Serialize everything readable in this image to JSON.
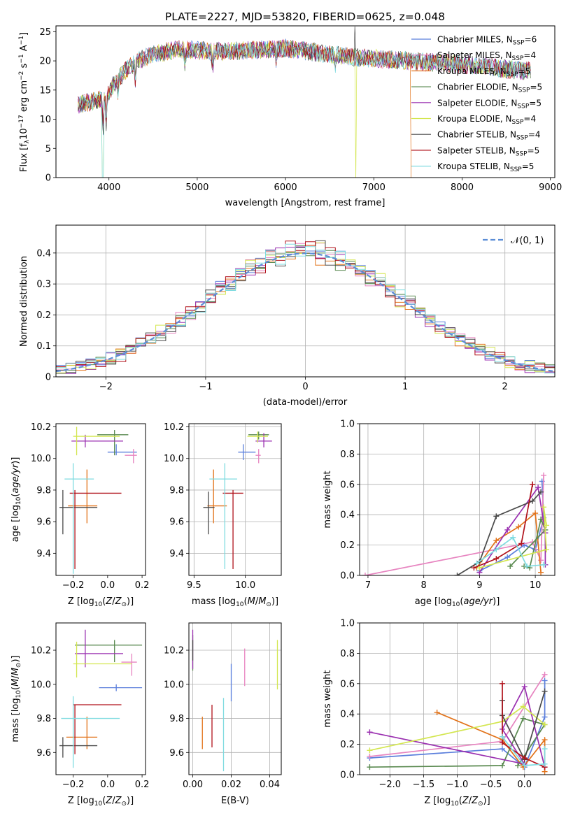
{
  "figure": {
    "title": "PLATE=2227, MJD=53820, FIBERID=0625, z=0.048"
  },
  "colors": {
    "chabrier_miles": "#5b7fdc",
    "salpeter_miles": "#e784c0",
    "kroupa_miles": "#e2731a",
    "chabrier_elodie": "#5a8a50",
    "salpeter_elodie": "#9a2fb0",
    "kroupa_elodie": "#d3e64f",
    "chabrier_stelib": "#4a4a4a",
    "salpeter_stelib": "#b0121b",
    "kroupa_stelib": "#7fdbe0",
    "normal_curve": "#5b8dd6",
    "grid": "#b0b0b0"
  },
  "chart_data": [
    {
      "id": "spectrum",
      "type": "line",
      "xlabel": "wavelength [Angstrom, rest frame]",
      "ylabel": "Flux [f_λ10^-17 erg cm^-2 s^-1 A^-1]",
      "xlim": [
        3400,
        9050
      ],
      "ylim": [
        0,
        26
      ],
      "xticks": [
        4000,
        5000,
        6000,
        7000,
        8000,
        9000
      ],
      "yticks": [
        0,
        5,
        10,
        15,
        20,
        25
      ],
      "grid": false,
      "legend_position": "top-right",
      "spectrum_trend": {
        "x": [
          3650,
          3800,
          3950,
          4100,
          4300,
          4500,
          4800,
          5200,
          5600,
          6000,
          6400,
          6800,
          7200,
          7600,
          8000,
          8300,
          8500,
          8700
        ],
        "y": [
          12.5,
          13.0,
          13.5,
          17.0,
          19.8,
          21.2,
          22.0,
          21.6,
          21.8,
          22.2,
          21.3,
          20.6,
          20.2,
          19.8,
          19.4,
          19.0,
          18.6,
          18.3
        ]
      },
      "series": [
        {
          "name": "Chabrier MILES",
          "n_ssp": "6",
          "color_key": "chabrier_miles"
        },
        {
          "name": "Salpeter MILES",
          "n_ssp": "4",
          "color_key": "salpeter_miles"
        },
        {
          "name": "Kroupa MILES",
          "n_ssp": "5",
          "color_key": "kroupa_miles"
        },
        {
          "name": "Chabrier ELODIE",
          "n_ssp": "5",
          "color_key": "chabrier_elodie"
        },
        {
          "name": "Salpeter ELODIE",
          "n_ssp": "5",
          "color_key": "salpeter_elodie"
        },
        {
          "name": "Kroupa ELODIE",
          "n_ssp": "4",
          "color_key": "kroupa_elodie"
        },
        {
          "name": "Chabrier STELIB",
          "n_ssp": "4",
          "color_key": "chabrier_stelib"
        },
        {
          "name": "Salpeter STELIB",
          "n_ssp": "5",
          "color_key": "salpeter_stelib"
        },
        {
          "name": "Kroupa STELIB",
          "n_ssp": "5",
          "color_key": "kroupa_stelib"
        }
      ]
    },
    {
      "id": "residuals",
      "type": "line",
      "xlabel": "(data-model)/error",
      "ylabel": "Normed distribution",
      "xlim": [
        -2.5,
        2.5
      ],
      "ylim": [
        0,
        0.49
      ],
      "xticks": [
        -2,
        -1,
        0,
        1,
        2
      ],
      "yticks": [
        0.0,
        0.1,
        0.2,
        0.3,
        0.4
      ],
      "grid": true,
      "legend_position": "top-right",
      "curve_label": "𝒩(0, 1)",
      "histogram_bin_width": 0.1
    },
    {
      "id": "age_vs_Z",
      "type": "scatter",
      "xlabel": "Z [log10(Z/Z⊙)]",
      "ylabel": "age [log10(age/yr)]",
      "xlim": [
        -0.3,
        0.22
      ],
      "ylim": [
        9.26,
        10.22
      ],
      "xticks": [
        -0.2,
        0.0,
        0.2
      ],
      "xtick_labels": [
        "−0.2",
        "0.0",
        "0.2"
      ],
      "yticks": [
        9.4,
        9.6,
        9.8,
        10.0,
        10.2
      ],
      "grid": false,
      "points": [
        {
          "key": "chabrier_miles",
          "x": 0.05,
          "y": 10.04,
          "xerr": [
            0.05,
            0.12
          ],
          "yerr": [
            0.02,
            0.05
          ]
        },
        {
          "key": "salpeter_miles",
          "x": 0.15,
          "y": 10.02,
          "xerr": [
            0.05,
            0.02
          ],
          "yerr": [
            0.05,
            0.04
          ]
        },
        {
          "key": "kroupa_miles",
          "x": -0.12,
          "y": 9.7,
          "xerr": [
            0.11,
            0.06
          ],
          "yerr": [
            0.11,
            0.23
          ]
        },
        {
          "key": "chabrier_elodie",
          "x": 0.04,
          "y": 10.15,
          "xerr": [
            0.1,
            0.08
          ],
          "yerr": [
            0.13,
            0.03
          ]
        },
        {
          "key": "salpeter_elodie",
          "x": -0.13,
          "y": 10.11,
          "xerr": [
            0.08,
            0.22
          ],
          "yerr": [
            0.04,
            0.04
          ]
        },
        {
          "key": "kroupa_elodie",
          "x": -0.18,
          "y": 10.14,
          "xerr": [
            0.02,
            0.25
          ],
          "yerr": [
            0.12,
            0.06
          ]
        },
        {
          "key": "chabrier_stelib",
          "x": -0.26,
          "y": 9.69,
          "xerr": [
            0.02,
            0.2
          ],
          "yerr": [
            0.17,
            0.11
          ]
        },
        {
          "key": "salpeter_stelib",
          "x": -0.19,
          "y": 9.78,
          "xerr": [
            0.03,
            0.27
          ],
          "yerr": [
            0.48,
            0.02
          ]
        },
        {
          "key": "kroupa_stelib",
          "x": -0.2,
          "y": 9.87,
          "xerr": [
            0.05,
            0.12
          ],
          "yerr": [
            0.6,
            0.1
          ]
        }
      ]
    },
    {
      "id": "age_vs_mass",
      "type": "scatter",
      "xlabel": "mass [log10(M/M⊙)]",
      "ylabel": "",
      "xlim": [
        9.45,
        10.35
      ],
      "ylim": [
        9.26,
        10.22
      ],
      "xticks": [
        9.5,
        10.0
      ],
      "yticks": [
        9.4,
        9.6,
        9.8,
        10.0,
        10.2
      ],
      "grid": true,
      "points": [
        {
          "key": "chabrier_miles",
          "x": 9.98,
          "y": 10.04,
          "xerr": [
            0.05,
            0.12
          ],
          "yerr": [
            0.05,
            0.05
          ]
        },
        {
          "key": "salpeter_miles",
          "x": 10.13,
          "y": 10.02,
          "xerr": [
            0.03,
            0.02
          ],
          "yerr": [
            0.05,
            0.04
          ]
        },
        {
          "key": "kroupa_miles",
          "x": 9.69,
          "y": 9.7,
          "xerr": [
            0.06,
            0.13
          ],
          "yerr": [
            0.11,
            0.23
          ]
        },
        {
          "key": "chabrier_elodie",
          "x": 10.13,
          "y": 10.15,
          "xerr": [
            0.1,
            0.1
          ],
          "yerr": [
            0.03,
            0.02
          ]
        },
        {
          "key": "salpeter_elodie",
          "x": 10.18,
          "y": 10.11,
          "xerr": [
            0.08,
            0.08
          ],
          "yerr": [
            0.04,
            0.05
          ]
        },
        {
          "key": "kroupa_elodie",
          "x": 10.12,
          "y": 10.14,
          "xerr": [
            0.1,
            0.1
          ],
          "yerr": [
            0.04,
            0.03
          ]
        },
        {
          "key": "chabrier_stelib",
          "x": 9.64,
          "y": 9.69,
          "xerr": [
            0.05,
            0.06
          ],
          "yerr": [
            0.17,
            0.1
          ]
        },
        {
          "key": "salpeter_stelib",
          "x": 9.88,
          "y": 9.78,
          "xerr": [
            0.1,
            0.1
          ],
          "yerr": [
            0.48,
            0.02
          ]
        },
        {
          "key": "kroupa_stelib",
          "x": 9.8,
          "y": 9.87,
          "xerr": [
            0.15,
            0.12
          ],
          "yerr": [
            0.57,
            0.1
          ]
        }
      ]
    },
    {
      "id": "weight_vs_age",
      "type": "line",
      "xlabel": "age [log10(age/yr)]",
      "ylabel": "mass weight",
      "xlim": [
        6.85,
        10.35
      ],
      "ylim": [
        0,
        1.0
      ],
      "xticks": [
        7,
        8,
        9,
        10
      ],
      "yticks": [
        0.0,
        0.2,
        0.4,
        0.6,
        0.8,
        1.0
      ],
      "grid": true,
      "series": [
        {
          "key": "chabrier_miles",
          "x": [
            9.0,
            9.5,
            9.8,
            10.0,
            10.15,
            10.12
          ],
          "y": [
            0.03,
            0.12,
            0.2,
            0.17,
            0.38,
            0.62
          ]
        },
        {
          "key": "salpeter_miles",
          "x": [
            6.95,
            9.95,
            10.1,
            10.15
          ],
          "y": [
            0.0,
            0.22,
            0.1,
            0.66
          ]
        },
        {
          "key": "kroupa_miles",
          "x": [
            8.95,
            9.3,
            9.7,
            10.0,
            10.1
          ],
          "y": [
            0.05,
            0.23,
            0.32,
            0.41,
            0.02
          ]
        },
        {
          "key": "chabrier_elodie",
          "x": [
            9.8,
            9.9,
            10.1,
            10.18,
            9.55
          ],
          "y": [
            0.06,
            0.05,
            0.37,
            0.3,
            0.06
          ]
        },
        {
          "key": "salpeter_elodie",
          "x": [
            9.0,
            9.5,
            10.05,
            10.18,
            10.18
          ],
          "y": [
            0.02,
            0.3,
            0.58,
            0.28,
            0.07
          ]
        },
        {
          "key": "kroupa_elodie",
          "x": [
            9.0,
            10.2,
            10.15,
            10.2
          ],
          "y": [
            0.05,
            0.17,
            0.45,
            0.33
          ]
        },
        {
          "key": "chabrier_stelib",
          "x": [
            8.6,
            9.0,
            9.3,
            9.95,
            10.1
          ],
          "y": [
            0.0,
            0.09,
            0.39,
            0.49,
            0.55
          ]
        },
        {
          "key": "salpeter_stelib",
          "x": [
            8.9,
            9.3,
            9.75,
            9.95,
            9.95
          ],
          "y": [
            0.05,
            0.11,
            0.21,
            0.6,
            0.6
          ]
        },
        {
          "key": "kroupa_stelib",
          "x": [
            8.95,
            9.3,
            9.6,
            9.85,
            10.15
          ],
          "y": [
            0.08,
            0.17,
            0.25,
            0.06,
            0.07
          ]
        }
      ]
    },
    {
      "id": "mass_vs_Z",
      "type": "scatter",
      "xlabel": "Z [log10(Z/Z⊙)]",
      "ylabel": "mass [log10(M/M⊙)]",
      "xlim": [
        -0.3,
        0.22
      ],
      "ylim": [
        9.47,
        10.36
      ],
      "xticks": [
        -0.2,
        0.0,
        0.2
      ],
      "xtick_labels": [
        "−0.2",
        "0.0",
        "0.2"
      ],
      "yticks": [
        9.6,
        9.8,
        10.0,
        10.2
      ],
      "grid": false,
      "points": [
        {
          "key": "chabrier_miles",
          "x": 0.05,
          "y": 9.98,
          "xerr": [
            0.1,
            0.15
          ],
          "yerr": [
            0.02,
            0.02
          ]
        },
        {
          "key": "salpeter_miles",
          "x": 0.14,
          "y": 10.13,
          "xerr": [
            0.06,
            0.03
          ],
          "yerr": [
            0.08,
            0.05
          ]
        },
        {
          "key": "kroupa_miles",
          "x": -0.12,
          "y": 9.69,
          "xerr": [
            0.12,
            0.06
          ],
          "yerr": [
            0.07,
            0.12
          ]
        },
        {
          "key": "chabrier_elodie",
          "x": 0.04,
          "y": 10.23,
          "xerr": [
            0.23,
            0.16
          ],
          "yerr": [
            0.1,
            0.03
          ]
        },
        {
          "key": "salpeter_elodie",
          "x": -0.13,
          "y": 10.18,
          "xerr": [
            0.06,
            0.22
          ],
          "yerr": [
            0.08,
            0.14
          ]
        },
        {
          "key": "kroupa_elodie",
          "x": -0.18,
          "y": 10.12,
          "xerr": [
            0.02,
            0.32
          ],
          "yerr": [
            0.08,
            0.13
          ]
        },
        {
          "key": "chabrier_stelib",
          "x": -0.26,
          "y": 9.64,
          "xerr": [
            0.02,
            0.2
          ],
          "yerr": [
            0.07,
            0.05
          ]
        },
        {
          "key": "salpeter_stelib",
          "x": -0.19,
          "y": 9.88,
          "xerr": [
            0.01,
            0.27
          ],
          "yerr": [
            0.29,
            0.0
          ]
        },
        {
          "key": "kroupa_stelib",
          "x": -0.2,
          "y": 9.8,
          "xerr": [
            0.07,
            0.27
          ],
          "yerr": [
            0.29,
            0.13
          ]
        }
      ]
    },
    {
      "id": "mass_vs_ebv",
      "type": "scatter",
      "xlabel": "E(B-V)",
      "ylabel": "",
      "xlim": [
        -0.002,
        0.046
      ],
      "ylim": [
        9.47,
        10.36
      ],
      "xticks": [
        0.0,
        0.02,
        0.04
      ],
      "xtick_labels": [
        "0.00",
        "0.02",
        "0.04"
      ],
      "yticks": [
        9.6,
        9.8,
        10.0,
        10.2
      ],
      "grid": true,
      "points": [
        {
          "key": "chabrier_miles",
          "x": 0.02,
          "y": 9.98,
          "xerr": [
            0,
            0
          ],
          "yerr": [
            0.08,
            0.14
          ]
        },
        {
          "key": "salpeter_miles",
          "x": 0.027,
          "y": 10.13,
          "xerr": [
            0,
            0
          ],
          "yerr": [
            0.14,
            0.08
          ]
        },
        {
          "key": "kroupa_miles",
          "x": 0.005,
          "y": 9.69,
          "xerr": [
            0,
            0
          ],
          "yerr": [
            0.07,
            0.12
          ]
        },
        {
          "key": "chabrier_elodie",
          "x": 0.0,
          "y": 10.23,
          "xerr": [
            0,
            0
          ],
          "yerr": [
            0.15,
            0.06
          ]
        },
        {
          "key": "salpeter_elodie",
          "x": 0.0,
          "y": 10.18,
          "xerr": [
            0,
            0
          ],
          "yerr": [
            0.09,
            0.14
          ]
        },
        {
          "key": "kroupa_elodie",
          "x": 0.044,
          "y": 10.12,
          "xerr": [
            0,
            0
          ],
          "yerr": [
            0.15,
            0.14
          ]
        },
        {
          "key": "chabrier_stelib",
          "x": 0.0,
          "y": 10.2,
          "xerr": [
            0,
            0
          ],
          "yerr": [
            0.06,
            0.06
          ]
        },
        {
          "key": "salpeter_stelib",
          "x": 0.01,
          "y": 9.76,
          "xerr": [
            0,
            0
          ],
          "yerr": [
            0.13,
            0.12
          ]
        },
        {
          "key": "kroupa_stelib",
          "x": 0.016,
          "y": 9.78,
          "xerr": [
            0,
            0
          ],
          "yerr": [
            0.29,
            0.14
          ]
        }
      ]
    },
    {
      "id": "weight_vs_Z",
      "type": "line",
      "xlabel": "Z [log10(Z/Z⊙)]",
      "ylabel": "mass weight",
      "xlim": [
        -2.45,
        0.45
      ],
      "ylim": [
        0,
        1.0
      ],
      "xticks": [
        -2.0,
        -1.5,
        -1.0,
        -0.5,
        0.0
      ],
      "xtick_labels": [
        "−2.0",
        "−1.5",
        "−1.0",
        "−0.5",
        "0.0"
      ],
      "yticks": [
        0.0,
        0.2,
        0.4,
        0.6,
        0.8,
        1.0
      ],
      "grid": true,
      "series": [
        {
          "key": "chabrier_miles",
          "x": [
            -2.3,
            -0.33,
            0.0,
            0.3,
            0.3
          ],
          "y": [
            0.11,
            0.17,
            0.05,
            0.38,
            0.62
          ]
        },
        {
          "key": "salpeter_miles",
          "x": [
            -2.3,
            -0.33,
            0.3
          ],
          "y": [
            0.12,
            0.22,
            0.66
          ]
        },
        {
          "key": "kroupa_miles",
          "x": [
            -1.3,
            -0.33,
            -0.02,
            0.3,
            0.3
          ],
          "y": [
            0.41,
            0.23,
            0.05,
            0.23,
            0.02
          ]
        },
        {
          "key": "chabrier_elodie",
          "x": [
            -2.3,
            -0.33,
            -0.02,
            0.3,
            -0.1
          ],
          "y": [
            0.05,
            0.06,
            0.37,
            0.33,
            0.06
          ]
        },
        {
          "key": "salpeter_elodie",
          "x": [
            -2.3,
            0.0,
            -0.33,
            0.0,
            0.3
          ],
          "y": [
            0.28,
            0.07,
            0.3,
            0.58,
            0.05
          ]
        },
        {
          "key": "kroupa_elodie",
          "x": [
            -2.3,
            -0.33,
            -0.02,
            0.3
          ],
          "y": [
            0.16,
            0.35,
            0.45,
            0.33
          ]
        },
        {
          "key": "chabrier_stelib",
          "x": [
            -0.33,
            -0.33,
            0.0,
            0.3
          ],
          "y": [
            0.49,
            0.39,
            0.1,
            0.55
          ]
        },
        {
          "key": "salpeter_stelib",
          "x": [
            -0.33,
            -0.33,
            0.0,
            0.3
          ],
          "y": [
            0.6,
            0.21,
            0.11,
            0.05
          ]
        },
        {
          "key": "kroupa_stelib",
          "x": [
            -0.33,
            0.0,
            0.3,
            0.3
          ],
          "y": [
            0.25,
            0.06,
            0.07,
            0.17
          ]
        }
      ]
    }
  ]
}
